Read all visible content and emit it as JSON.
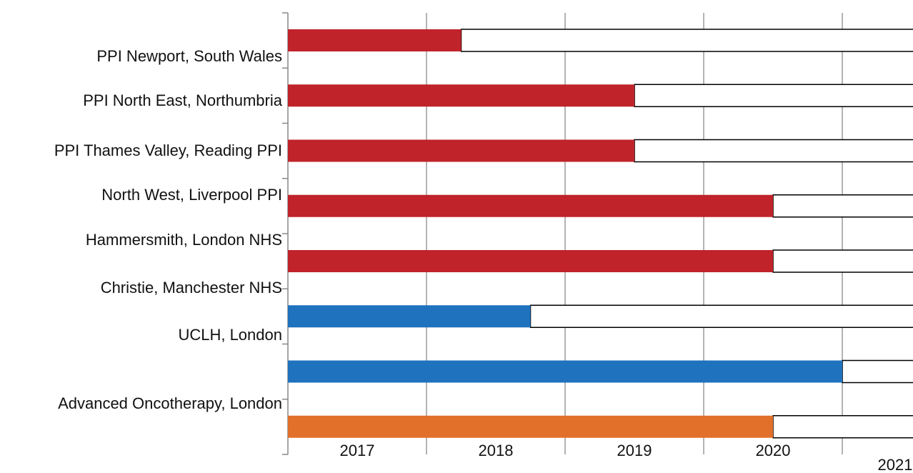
{
  "chart_data": {
    "type": "gantt",
    "categories": [
      "PPI Newport, South Wales",
      "PPI North East, Northumbria",
      "PPI Thames Valley, Reading PPI",
      "North West, Liverpool PPI",
      "Hammersmith, London NHS",
      "Christie, Manchester NHS",
      "UCLH, London",
      "Advanced Oncotherapy, London"
    ],
    "values": [
      2018.25,
      2019.5,
      2019.5,
      2020.5,
      2020.5,
      2018.75,
      2021,
      2020.5
    ],
    "colors": [
      "#c0232a",
      "#c0232a",
      "#c0232a",
      "#c0232a",
      "#c0232a",
      "#1f72bd",
      "#1f72bd",
      "#e2702a"
    ],
    "xlim": [
      2017,
      2021.51
    ],
    "xticks": [
      2017,
      2018,
      2019,
      2020,
      2021
    ],
    "grid": true
  }
}
